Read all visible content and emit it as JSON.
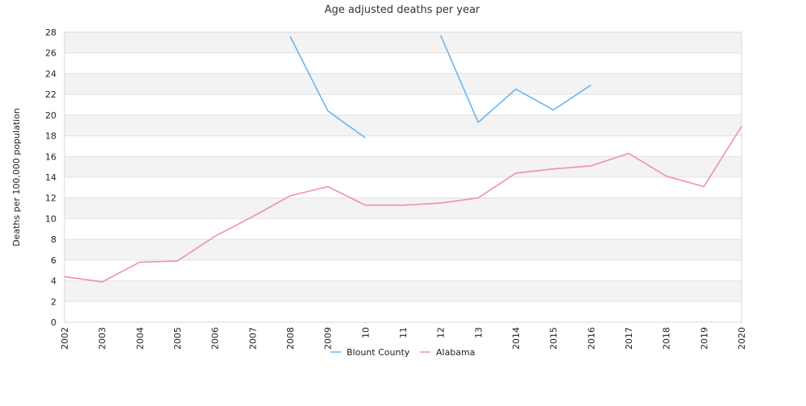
{
  "chart_data": {
    "type": "line",
    "title": "Age adjusted deaths per year",
    "ylabel": "Deaths per 100,000 population",
    "xlabel": "",
    "ylim": [
      0,
      28
    ],
    "yticks": [
      0,
      2,
      4,
      6,
      8,
      10,
      12,
      14,
      16,
      18,
      20,
      22,
      24,
      26,
      28
    ],
    "x_tick_labels": [
      "2002",
      "2003",
      "2004",
      "2005",
      "2006",
      "2007",
      "2008",
      "2009",
      "10",
      "11",
      "12",
      "13",
      "2014",
      "2015",
      "2016",
      "2017",
      "2018",
      "2019",
      "2020"
    ],
    "grid": true,
    "legend_position": "bottom",
    "series": [
      {
        "name": "Blount County",
        "color": "#6cb4ee",
        "values": [
          null,
          null,
          null,
          null,
          null,
          null,
          27.6,
          20.4,
          17.8,
          null,
          27.7,
          19.3,
          22.5,
          20.5,
          22.9,
          null,
          null,
          null,
          null
        ]
      },
      {
        "name": "Alabama",
        "color": "#f08cbc",
        "values": [
          4.4,
          3.9,
          5.8,
          5.9,
          8.3,
          10.2,
          12.2,
          13.1,
          11.3,
          11.3,
          11.5,
          12.0,
          14.4,
          14.8,
          15.1,
          16.3,
          14.1,
          13.1,
          18.9
        ]
      }
    ]
  }
}
